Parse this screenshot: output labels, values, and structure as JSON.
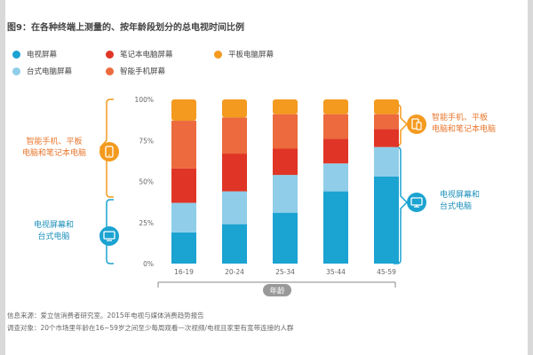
{
  "title": "图9：在各种终端上测量的、按年龄段划分的总电视时间比例",
  "legend": [
    {
      "label": "电视屏幕",
      "color": "#1ba3d1"
    },
    {
      "label": "笔记本电脑屏幕",
      "color": "#e03526"
    },
    {
      "label": "平板电脑屏幕",
      "color": "#f39a1f"
    },
    {
      "label": "台式电脑屏幕",
      "color": "#8fcde9"
    },
    {
      "label": "智能手机屏幕",
      "color": "#ec6a3d"
    }
  ],
  "side_labels": {
    "left_top": [
      "智能手机、平板",
      "电脑和笔记本电脑"
    ],
    "left_bottom": [
      "电视屏幕和",
      "台式电脑"
    ],
    "right_top": [
      "智能手机、平板",
      "电脑和笔记本电脑"
    ],
    "right_bottom": [
      "电视屏幕和",
      "台式电脑"
    ]
  },
  "footer": {
    "source": "信息来源：爱立信消费者研究室。2015年电视与媒体消费趋势报告",
    "subjects": "调查对象：20个市场里年龄在16~59岁之间至少每周观看一次视频/电视且家里有宽带连接的人群"
  },
  "chart_data": {
    "type": "bar",
    "stacked": true,
    "title": "图9：在各种终端上测量的、按年龄段划分的总电视时间比例",
    "xlabel": "年龄",
    "ylabel": "",
    "ylim": [
      0,
      100
    ],
    "yticks": [
      "0%",
      "25%",
      "50%",
      "75%",
      "100%"
    ],
    "categories": [
      "16-19",
      "20-24",
      "25-34",
      "35-44",
      "45-59"
    ],
    "series": [
      {
        "name": "电视屏幕",
        "color": "#1ba3d1",
        "values": [
          19,
          24,
          31,
          44,
          53
        ]
      },
      {
        "name": "台式电脑屏幕",
        "color": "#8fcde9",
        "values": [
          18,
          20,
          23,
          17,
          18
        ]
      },
      {
        "name": "笔记本电脑屏幕",
        "color": "#e03526",
        "values": [
          21,
          23,
          16,
          15,
          11
        ]
      },
      {
        "name": "智能手机屏幕",
        "color": "#ec6a3d",
        "values": [
          29,
          22,
          21,
          15,
          9
        ]
      },
      {
        "name": "平板电脑屏幕",
        "color": "#f39a1f",
        "values": [
          13,
          11,
          9,
          9,
          9
        ]
      }
    ]
  }
}
